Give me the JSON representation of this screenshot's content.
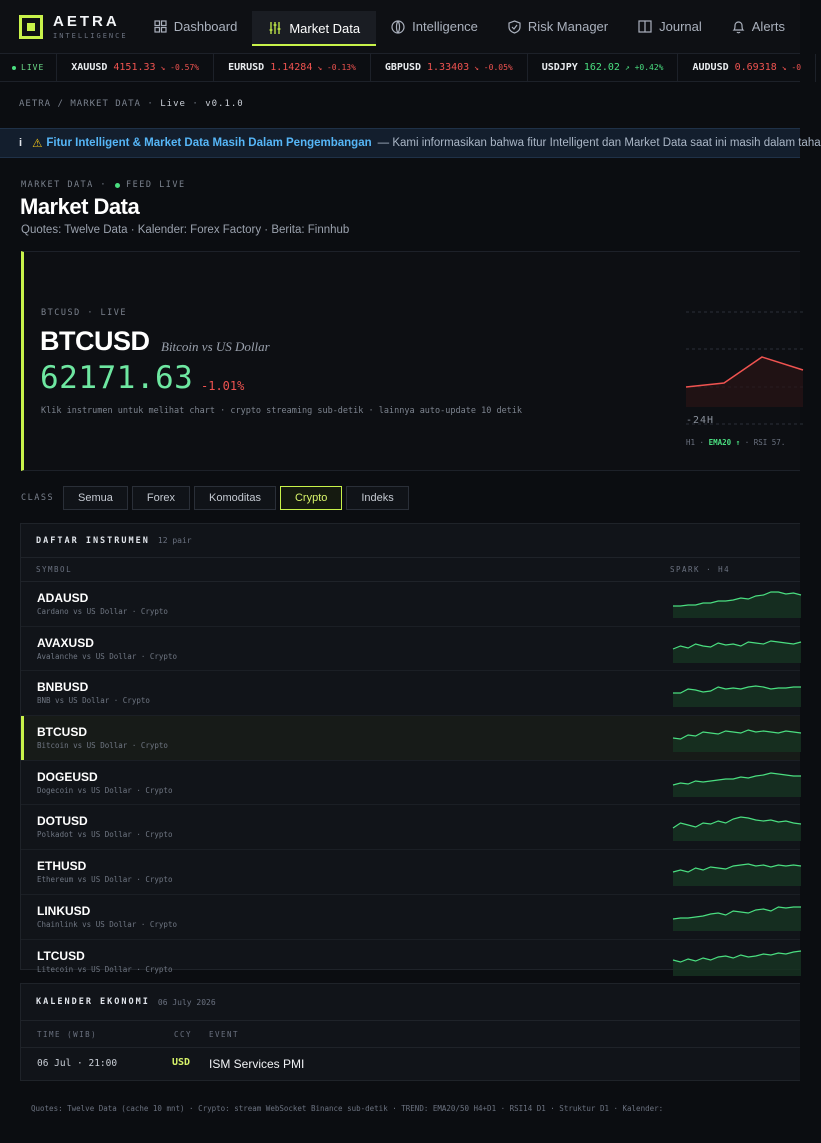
{
  "brand": {
    "name": "AETRA",
    "subtitle": "INTELLIGENCE"
  },
  "nav": [
    {
      "label": "Dashboard",
      "icon": "grid-icon"
    },
    {
      "label": "Market Data",
      "icon": "sliders-icon",
      "active": true
    },
    {
      "label": "Intelligence",
      "icon": "brain-icon"
    },
    {
      "label": "Risk Manager",
      "icon": "shield-icon"
    },
    {
      "label": "Journal",
      "icon": "book-icon"
    },
    {
      "label": "Alerts",
      "icon": "bell-icon"
    }
  ],
  "ticker": {
    "live_label": "LIVE",
    "items": [
      {
        "symbol": "XAUUSD",
        "price": "4151.33",
        "change": "↘ -0.57%",
        "dir": "down"
      },
      {
        "symbol": "EURUSD",
        "price": "1.14284",
        "change": "↘ -0.13%",
        "dir": "down"
      },
      {
        "symbol": "GBPUSD",
        "price": "1.33403",
        "change": "↘ -0.05%",
        "dir": "down"
      },
      {
        "symbol": "USDJPY",
        "price": "162.02",
        "change": "↗ +0.42%",
        "dir": "up"
      },
      {
        "symbol": "AUDUSD",
        "price": "0.69318",
        "change": "↘ -0",
        "dir": "down"
      }
    ]
  },
  "breadcrumb": {
    "root": "AETRA",
    "sep": "/",
    "page": "MARKET DATA",
    "status": "Live",
    "version": "v0.1.0"
  },
  "banner": {
    "info": "i",
    "title": "Fitur Intelligent & Market Data Masih Dalam Pengembangan",
    "text": "— Kami informasikan bahwa fitur Intelligent dan Market Data saat ini masih dalam taha"
  },
  "header": {
    "eyebrow": "MARKET DATA ·",
    "feed": "FEED LIVE",
    "title": "Market Data",
    "sources": "Quotes: Twelve Data  ·  Kalender: Forex Factory  ·  Berita: Finnhub"
  },
  "hero": {
    "label": "BTCUSD · LIVE",
    "symbol": "BTCUSD",
    "description": "Bitcoin vs US Dollar",
    "price": "62171.63",
    "change": "-1.01%",
    "hint": "Klik instrumen untuk melihat chart · crypto streaming sub-detik · lainnya auto-update 10 detik",
    "chart_range_label": "-24H",
    "chart_footer_tf": "H1",
    "chart_footer_ema": "EMA20 ↑",
    "chart_footer_rsi": "RSI 57."
  },
  "filter": {
    "label": "CLASS",
    "options": [
      "Semua",
      "Forex",
      "Komoditas",
      "Crypto",
      "Indeks"
    ],
    "selected": "Crypto"
  },
  "instruments": {
    "title": "DAFTAR INSTRUMEN",
    "count": "12 pair",
    "col_symbol": "SYMBOL",
    "col_spark": "SPARK · H4",
    "rows": [
      {
        "symbol": "ADAUSD",
        "desc": "Cardano vs US Dollar · Crypto"
      },
      {
        "symbol": "AVAXUSD",
        "desc": "Avalanche vs US Dollar · Crypto"
      },
      {
        "symbol": "BNBUSD",
        "desc": "BNB vs US Dollar · Crypto"
      },
      {
        "symbol": "BTCUSD",
        "desc": "Bitcoin vs US Dollar · Crypto",
        "selected": true
      },
      {
        "symbol": "DOGEUSD",
        "desc": "Dogecoin vs US Dollar · Crypto"
      },
      {
        "symbol": "DOTUSD",
        "desc": "Polkadot vs US Dollar · Crypto"
      },
      {
        "symbol": "ETHUSD",
        "desc": "Ethereum vs US Dollar · Crypto"
      },
      {
        "symbol": "LINKUSD",
        "desc": "Chainlink vs US Dollar · Crypto"
      },
      {
        "symbol": "LTCUSD",
        "desc": "Litecoin vs US Dollar · Crypto"
      }
    ]
  },
  "calendar": {
    "title": "KALENDER EKONOMI",
    "date": "06 July 2026",
    "col_time": "TIME (WIB)",
    "col_ccy": "CCY",
    "col_event": "EVENT",
    "rows": [
      {
        "time": "06 Jul · 21:00",
        "ccy": "USD",
        "event": "ISM Services PMI"
      }
    ]
  },
  "footer": "Quotes: Twelve Data (cache 10 mnt) · Crypto: stream WebSocket Binance sub-detik · TREND: EMA20/50 H4+D1 · RSI14 D1 · Struktur D1 · Kalender:",
  "colors": {
    "accent": "#c8f24a",
    "up": "#4ade80",
    "down": "#ef5350",
    "price": "#6ee7a1",
    "banner_title": "#56b6f7"
  }
}
